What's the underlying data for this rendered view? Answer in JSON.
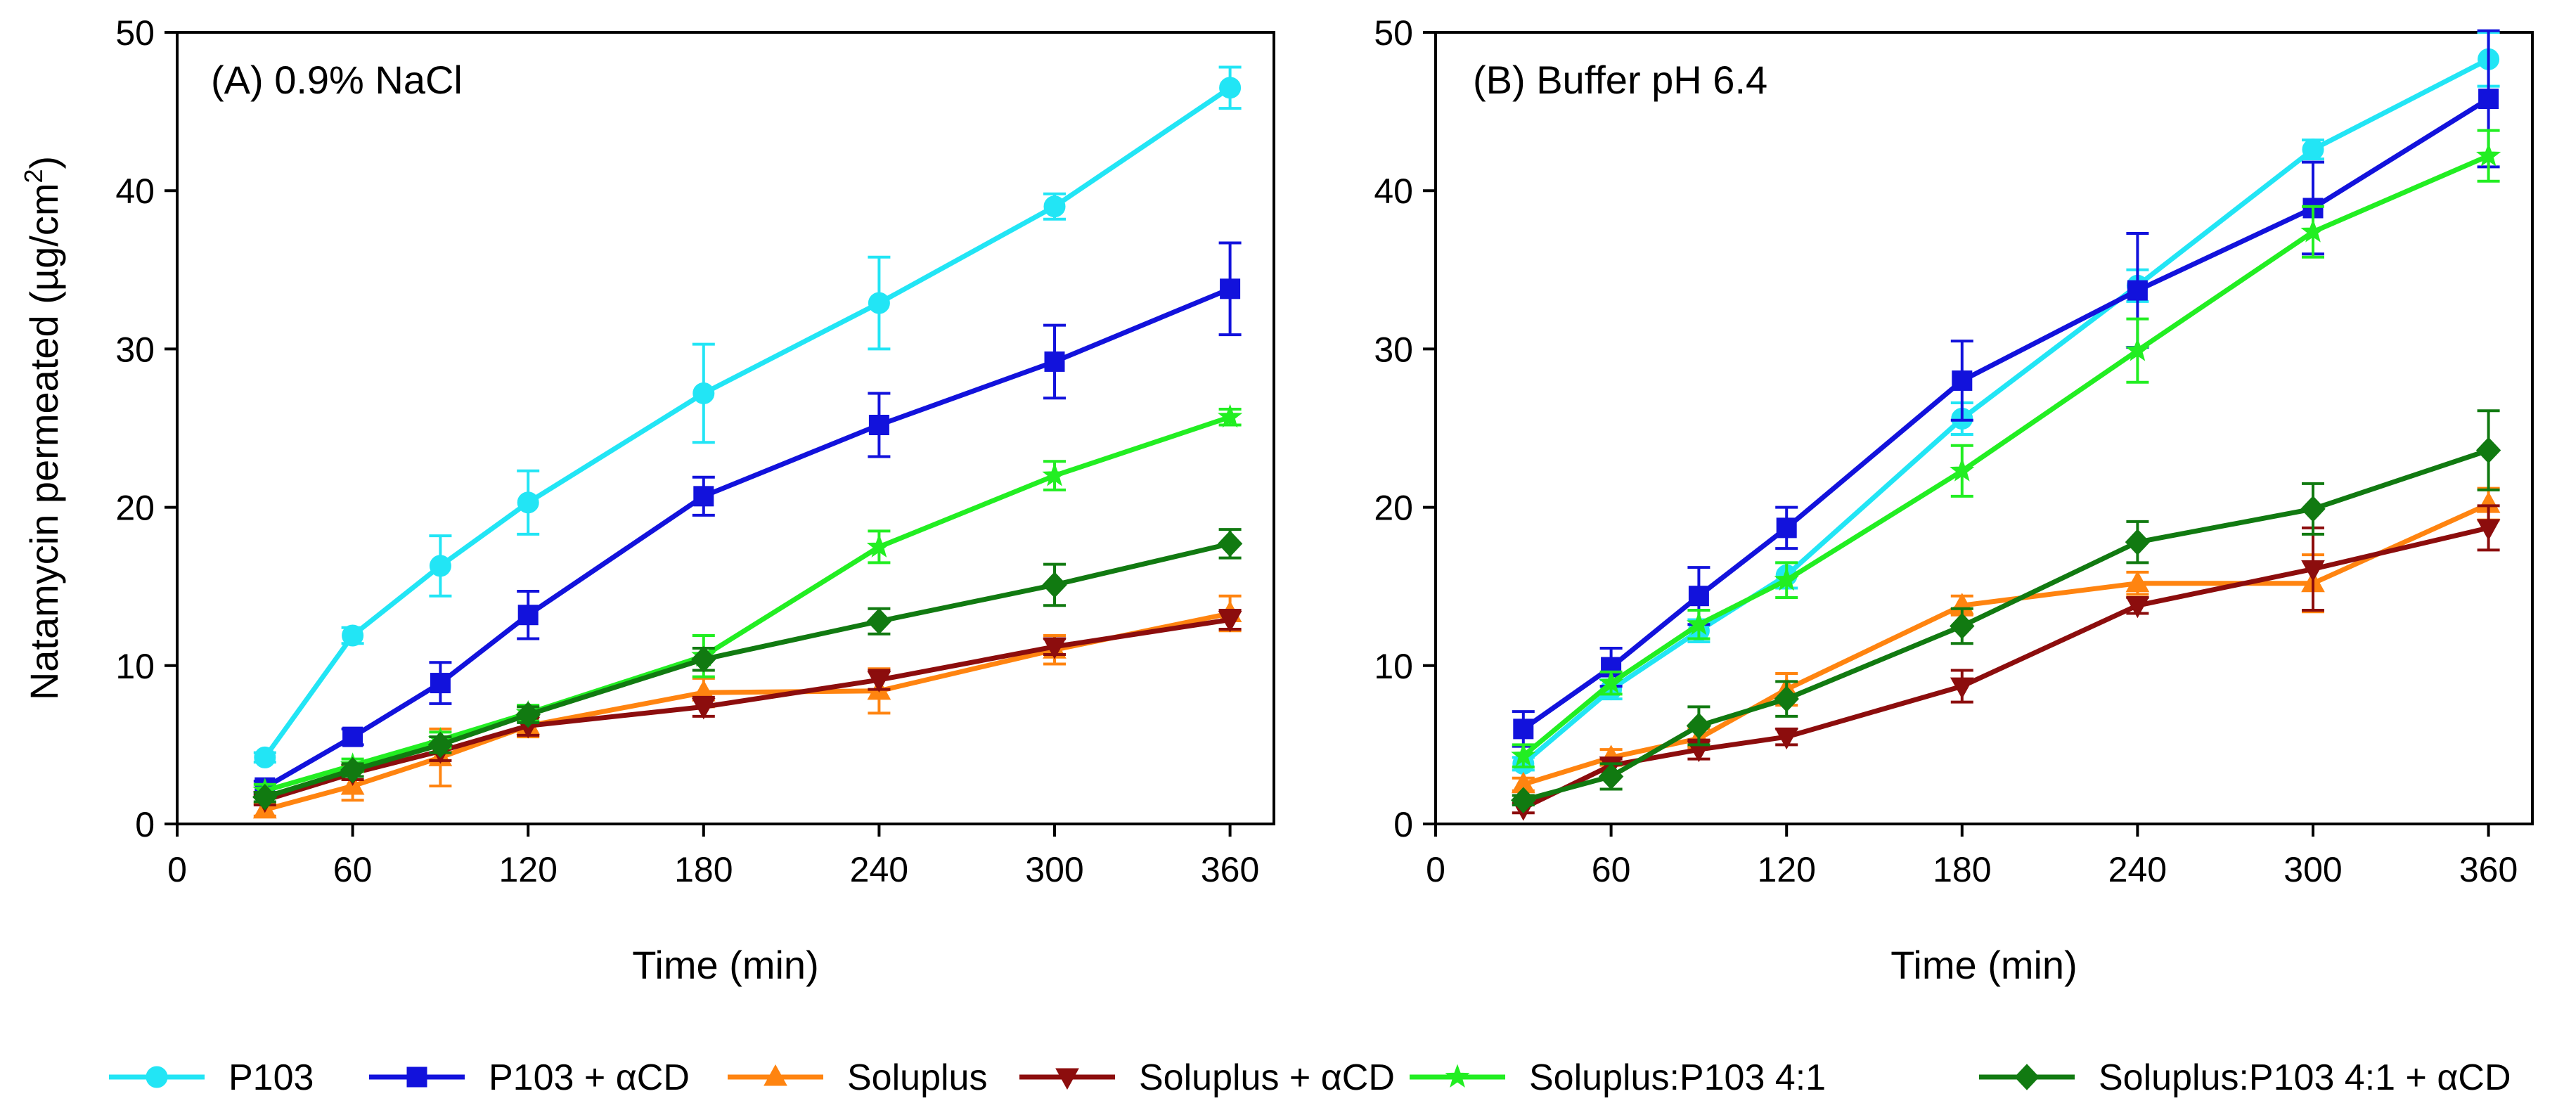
{
  "chart_data": [
    {
      "type": "line",
      "title": "(A) 0.9% NaCl",
      "xlabel": "Time (min)",
      "ylabel": "Natamycin permeated (µg/cm",
      "ylabel_sup": "2",
      "ylabel_close": ")",
      "xlim": [
        0,
        375
      ],
      "ylim": [
        0,
        50
      ],
      "xticks": [
        0,
        60,
        120,
        180,
        240,
        300,
        360
      ],
      "yticks": [
        0,
        10,
        20,
        30,
        40,
        50
      ],
      "x": [
        30,
        60,
        90,
        120,
        180,
        240,
        300,
        360
      ],
      "series": [
        {
          "name": "P103",
          "values": [
            4.2,
            11.9,
            16.3,
            20.3,
            27.2,
            32.9,
            39.0,
            46.5
          ],
          "errors": [
            0.3,
            0.5,
            1.9,
            2.0,
            3.1,
            2.9,
            0.8,
            1.3
          ]
        },
        {
          "name": "P103 + αCD",
          "values": [
            2.3,
            5.5,
            8.9,
            13.2,
            20.7,
            25.2,
            29.2,
            33.8
          ],
          "errors": [
            0.4,
            0.5,
            1.3,
            1.5,
            1.2,
            2.0,
            2.3,
            2.9
          ]
        },
        {
          "name": "Soluplus",
          "values": [
            0.9,
            2.4,
            4.2,
            6.2,
            8.3,
            8.4,
            11.0,
            13.3
          ],
          "errors": [
            0.4,
            0.9,
            1.8,
            0.7,
            0.9,
            1.4,
            0.9,
            1.1
          ]
        },
        {
          "name": "Soluplus + αCD",
          "values": [
            1.5,
            3.2,
            4.6,
            6.2,
            7.4,
            9.1,
            11.2,
            12.9
          ],
          "errors": [
            0.3,
            0.4,
            0.6,
            0.6,
            0.6,
            0.6,
            0.5,
            0.6
          ]
        },
        {
          "name": "Soluplus:P103 4:1",
          "values": [
            2.1,
            3.7,
            5.3,
            7.0,
            10.6,
            17.5,
            22.0,
            25.7
          ],
          "errors": [
            0.4,
            0.4,
            0.5,
            0.5,
            1.3,
            1.0,
            0.9,
            0.5
          ]
        },
        {
          "name": "Soluplus:P103 4:1 + αCD",
          "values": [
            1.7,
            3.4,
            5.0,
            6.9,
            10.4,
            12.8,
            15.1,
            17.7
          ],
          "errors": [
            0.3,
            0.4,
            0.5,
            0.5,
            0.7,
            0.8,
            1.3,
            0.9
          ]
        }
      ]
    },
    {
      "type": "line",
      "title": "(B) Buffer pH 6.4",
      "xlabel": "Time (min)",
      "ylabel": "",
      "xlim": [
        0,
        375
      ],
      "ylim": [
        0,
        50
      ],
      "xticks": [
        0,
        60,
        120,
        180,
        240,
        300,
        360
      ],
      "yticks": [
        0,
        10,
        20,
        30,
        40,
        50
      ],
      "x": [
        30,
        60,
        90,
        120,
        180,
        240,
        300,
        360
      ],
      "series": [
        {
          "name": "P103",
          "values": [
            3.8,
            8.5,
            12.2,
            15.7,
            25.6,
            34.0,
            42.6,
            48.3
          ],
          "errors": [
            0.4,
            0.6,
            0.7,
            0.8,
            1.0,
            1.0,
            0.6,
            1.7
          ]
        },
        {
          "name": "P103 + αCD",
          "values": [
            6.0,
            9.9,
            14.4,
            18.7,
            28.0,
            33.7,
            38.9,
            45.8
          ],
          "errors": [
            1.1,
            1.2,
            1.8,
            1.3,
            2.5,
            3.6,
            2.9,
            4.3
          ]
        },
        {
          "name": "Soluplus",
          "values": [
            2.5,
            4.2,
            5.4,
            8.5,
            13.8,
            15.2,
            15.2,
            20.2
          ],
          "errors": [
            0.4,
            0.5,
            0.6,
            1.0,
            0.6,
            0.7,
            1.8,
            1.0
          ]
        },
        {
          "name": "Soluplus + αCD",
          "values": [
            1.0,
            3.7,
            4.7,
            5.5,
            8.7,
            13.8,
            16.1,
            18.7
          ],
          "errors": [
            0.3,
            0.4,
            0.6,
            0.5,
            1.0,
            0.5,
            2.6,
            1.4
          ]
        },
        {
          "name": "Soluplus:P103 4:1",
          "values": [
            4.3,
            8.9,
            12.6,
            15.4,
            22.3,
            29.9,
            37.4,
            42.2
          ],
          "errors": [
            0.7,
            0.7,
            0.9,
            1.1,
            1.6,
            2.0,
            1.6,
            1.6
          ]
        },
        {
          "name": "Soluplus:P103 4:1 + αCD",
          "values": [
            1.5,
            3.0,
            6.2,
            7.9,
            12.5,
            17.8,
            19.9,
            23.6
          ],
          "errors": [
            0.3,
            0.8,
            1.2,
            1.1,
            1.1,
            1.3,
            1.6,
            2.5
          ]
        }
      ]
    }
  ],
  "legend": {
    "items": [
      {
        "label": "P103",
        "color": "#22e5f5",
        "marker": "circle"
      },
      {
        "label": "P103 + αCD",
        "color": "#1212dc",
        "marker": "square"
      },
      {
        "label": "Soluplus",
        "color": "#ff8410",
        "marker": "triangle-up"
      },
      {
        "label": "Soluplus + αCD",
        "color": "#8c0d0d",
        "marker": "triangle-down"
      },
      {
        "label": "Soluplus:P103 4:1",
        "color": "#22ee22",
        "marker": "star"
      },
      {
        "label": "Soluplus:P103 4:1 + αCD",
        "color": "#117a11",
        "marker": "diamond"
      }
    ]
  }
}
